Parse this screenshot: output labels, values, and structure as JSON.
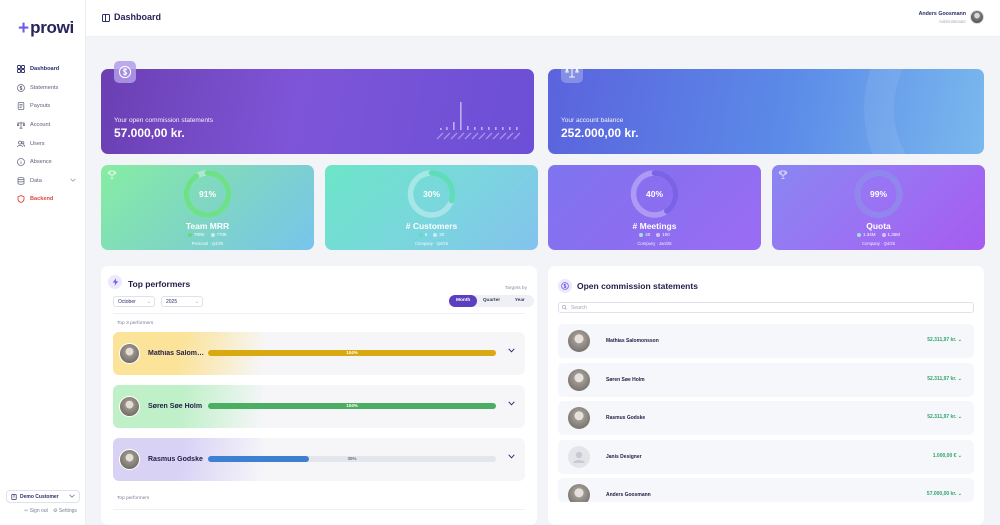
{
  "brand": {
    "name": "prowi",
    "plus": "+"
  },
  "nav": {
    "items": [
      {
        "label": "Dashboard",
        "icon": "grid-icon"
      },
      {
        "label": "Statements",
        "icon": "dollar-icon"
      },
      {
        "label": "Payouts",
        "icon": "receipt-icon"
      },
      {
        "label": "Account",
        "icon": "scale-icon"
      },
      {
        "label": "Users",
        "icon": "users-icon"
      },
      {
        "label": "Absence",
        "icon": "info-icon"
      },
      {
        "label": "Data",
        "icon": "database-icon"
      },
      {
        "label": "Backend",
        "icon": "shield-icon"
      }
    ]
  },
  "customer": {
    "label": "Demo Customer"
  },
  "footer": {
    "sign_out": "Sign out",
    "settings": "Settings"
  },
  "header": {
    "title": "Dashboard",
    "user_name": "Anders Goosmann",
    "user_role": "Administrator"
  },
  "commission_card": {
    "label": "Your open commission statements",
    "amount": "57.000,00 kr."
  },
  "balance_card": {
    "label": "Your account balance",
    "amount": "252.000,00 kr."
  },
  "kpis": [
    {
      "percent": "91%",
      "label": "Team MRR",
      "legend_a": "700K",
      "legend_b": "770K",
      "scope": "Personal · Q4/25",
      "fraction": 0.91
    },
    {
      "percent": "30%",
      "label": "# Customers",
      "legend_a": "6",
      "legend_b": "20",
      "scope": "Company · Q4/25",
      "fraction": 0.3
    },
    {
      "percent": "40%",
      "label": "# Meetings",
      "legend_a": "40",
      "legend_b": "100",
      "scope": "Company · Jan/25",
      "fraction": 0.4
    },
    {
      "percent": "99%",
      "label": "Quota",
      "legend_a": "1.34M",
      "legend_b": "1.35M",
      "scope": "Company · Q4/25",
      "fraction": 0.99
    }
  ],
  "top_performers": {
    "title": "Top performers",
    "month_value": "October",
    "year_value": "2025",
    "targets_label": "Targets by",
    "segments": [
      "Month",
      "Quarter",
      "Year"
    ],
    "active_segment": "Month",
    "top3_caption": "Top 3 performers",
    "rest_caption": "Top performers",
    "rows": [
      {
        "name": "Mathias Salomonsson",
        "display_name": "Mathias Salomo...",
        "progress_label": "104%",
        "fraction": 1.0,
        "color": "#d9a911",
        "glow": "#fbe39a"
      },
      {
        "name": "Søren Søe Holm",
        "display_name": "Søren Søe Holm",
        "progress_label": "104%",
        "fraction": 1.0,
        "color": "#4cae63",
        "glow": "#bff0c8"
      },
      {
        "name": "Rasmus Godske",
        "display_name": "Rasmus Godske",
        "progress_label": "35%",
        "fraction": 0.35,
        "color": "#3d7fd1",
        "glow": "#d8d2f5"
      }
    ]
  },
  "statements": {
    "title": "Open commission statements",
    "search_placeholder": "Search",
    "rows": [
      {
        "name": "Mathias Salomonsson",
        "value": "52.311,97 kr."
      },
      {
        "name": "Søren Søe Holm",
        "value": "52.311,97 kr."
      },
      {
        "name": "Rasmus Godske",
        "value": "52.311,97 kr."
      },
      {
        "name": "Janis Designer",
        "value": "1.000,00 €"
      },
      {
        "name": "Anders Goosmann",
        "value": "57.000,00 kr."
      }
    ]
  }
}
